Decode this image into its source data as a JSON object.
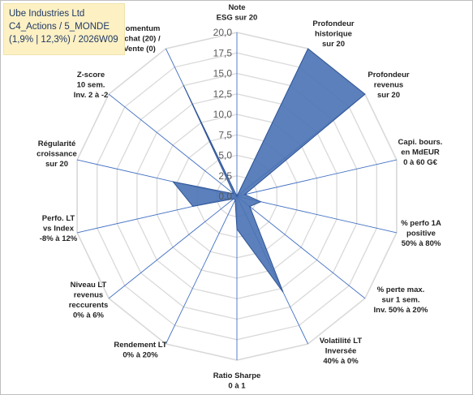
{
  "title": {
    "line1": "Ube Industries Ltd",
    "line2": "C4_Actions / 5_MONDE",
    "line3": "(1,9% | 12,3%) / 2026W09"
  },
  "colors": {
    "series_fill": "#4a72b4",
    "series_stroke": "#2f5597",
    "spokes": "#4472c4",
    "grid": "#d9d9d9",
    "title_box": "#fdf1c4"
  },
  "chart_data": {
    "type": "radar",
    "rlim": [
      0,
      20
    ],
    "r_ticks": [
      "0,0",
      "2,5",
      "5,0",
      "7,5",
      "10,0",
      "12,5",
      "15,0",
      "17,5",
      "20,0"
    ],
    "grid": true,
    "legend": "none",
    "categories": [
      "Note ESG sur 20",
      "Profondeur historique sur 20",
      "Profondeur revenus sur 20",
      "Capi. bours. en MdEUR 0 à 60 G€",
      "% perfo 1A positive 50% à 80%",
      "% perte max. sur 1 sem. Inv. 50% à 20%",
      "Volatilité LT Inversée 40% à 0%",
      "Ratio Sharpe 0 à 1",
      "Rendement LT 0% à 20%",
      "Niveau LT revenus reccurents 0% à 6%",
      "Perfo. LT vs Index -8% à 12%",
      "Régularité croissance sur 20",
      "Z-score 10 sem. Inv. 2 à -2",
      "Momentum Achat (20) / Vente (0)"
    ],
    "category_lines": [
      [
        "Note",
        "ESG sur 20"
      ],
      [
        "Profondeur",
        "historique",
        "sur 20"
      ],
      [
        "Profondeur",
        "revenus",
        "sur 20"
      ],
      [
        "Capi. bours.",
        "en MdEUR",
        "0 à 60 G€"
      ],
      [
        "% perfo 1A",
        "positive",
        "50% à 80%"
      ],
      [
        "% perte max.",
        "sur 1 sem.",
        "Inv. 50% à 20%"
      ],
      [
        "Volatilité LT",
        "Inversée",
        "40% à 0%"
      ],
      [
        "Ratio Sharpe",
        "0 à 1"
      ],
      [
        "Rendement LT",
        "0% à 20%"
      ],
      [
        "Niveau LT",
        "revenus",
        "reccurents",
        "0% à 6%"
      ],
      [
        "Perfo. LT",
        "vs Index",
        "-8% à 12%"
      ],
      [
        "Régularité",
        "croissance",
        "sur 20"
      ],
      [
        "Z-score",
        "10 sem.",
        "Inv. 2 à -2"
      ],
      [
        "Momentum",
        "Achat (20) /",
        "Vente (0)"
      ]
    ],
    "values": [
      0,
      20,
      20,
      1,
      3,
      2,
      13,
      4,
      0.5,
      0.5,
      5.5,
      8,
      0.5,
      15
    ]
  }
}
